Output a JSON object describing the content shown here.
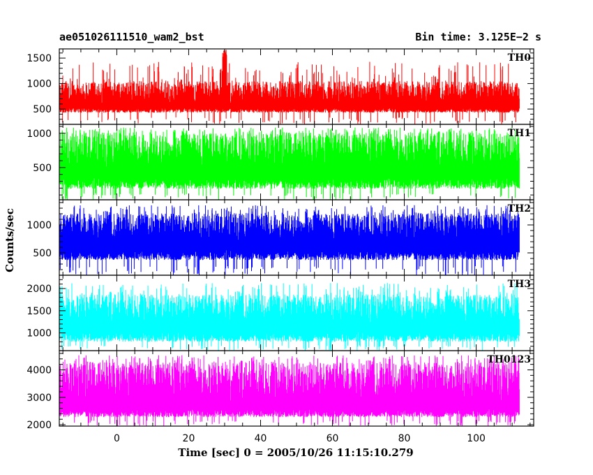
{
  "chart_data": {
    "type": "line",
    "title": "ae051026111510_wam2_bst",
    "bin_label": "Bin time: 3.125E−2 s",
    "ylabel": "Counts/sec",
    "xlabel": "Time [sec] 0 = 2005/10/26 11:15:10.279",
    "xlim": [
      -16,
      116
    ],
    "xticks": [
      0,
      20,
      40,
      60,
      80,
      100
    ],
    "data_x_range": [
      -16,
      112
    ],
    "bin_time": 0.03125,
    "grid": false,
    "panels": [
      {
        "name": "TH0",
        "color": "#ff0000",
        "ylim": [
          200,
          1680
        ],
        "yticks": [
          500,
          1000,
          1500
        ],
        "baseline": 600,
        "noise_low": 430,
        "noise_high": 1050,
        "peaks": [
          {
            "x": 30,
            "value": 1680
          }
        ]
      },
      {
        "name": "TH1",
        "color": "#00ff00",
        "ylim": [
          30,
          1130
        ],
        "yticks": [
          500,
          1000
        ],
        "baseline": 480,
        "noise_low": 190,
        "noise_high": 1010,
        "peaks": []
      },
      {
        "name": "TH2",
        "color": "#0000ff",
        "ylim": [
          100,
          1450
        ],
        "yticks": [
          500,
          1000
        ],
        "baseline": 700,
        "noise_low": 370,
        "noise_high": 1210,
        "peaks": []
      },
      {
        "name": "TH3",
        "color": "#00ffff",
        "ylim": [
          600,
          2300
        ],
        "yticks": [
          1000,
          1500,
          2000
        ],
        "baseline": 1200,
        "noise_low": 800,
        "noise_high": 1870,
        "peaks": []
      },
      {
        "name": "TH0123",
        "color": "#ff00ff",
        "ylim": [
          1950,
          4700
        ],
        "yticks": [
          2000,
          3000,
          4000
        ],
        "baseline": 2800,
        "noise_low": 2280,
        "noise_high": 4280,
        "peaks": [
          {
            "x": 30,
            "value": 3600
          }
        ]
      }
    ]
  }
}
